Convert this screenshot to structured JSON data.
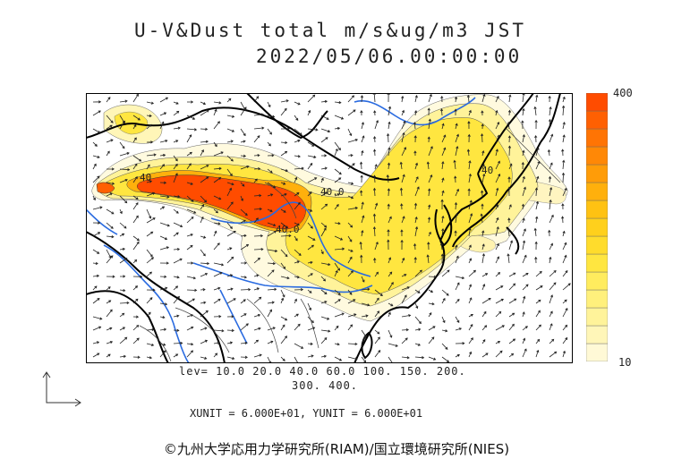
{
  "title": {
    "line1": "U-V&Dust total m/s&ug/m3 JST",
    "line2": "2022/05/06.00:00:00"
  },
  "colorbar": {
    "max_label": "400",
    "min_label": "10",
    "colors": [
      "#fff9d6",
      "#fff6b8",
      "#fff39a",
      "#fff07c",
      "#ffec5e",
      "#ffe640",
      "#ffdc2c",
      "#ffd01c",
      "#ffc212",
      "#ffb00c",
      "#ff9c08",
      "#ff8806",
      "#ff7404",
      "#ff6002",
      "#ff4c00"
    ]
  },
  "contour_labels": [
    "40.0",
    "40.0",
    "40",
    "40"
  ],
  "legend": {
    "levels_line1": "lev= 10.0 20.0 40.0 60.0 100. 150. 200.",
    "levels_line2": "300. 400.",
    "units_line": "XUNIT = 6.000E+01, YUNIT = 6.000E+01"
  },
  "credit": "©九州大学応用力学研究所(RIAM)/国立環境研究所(NIES)"
}
